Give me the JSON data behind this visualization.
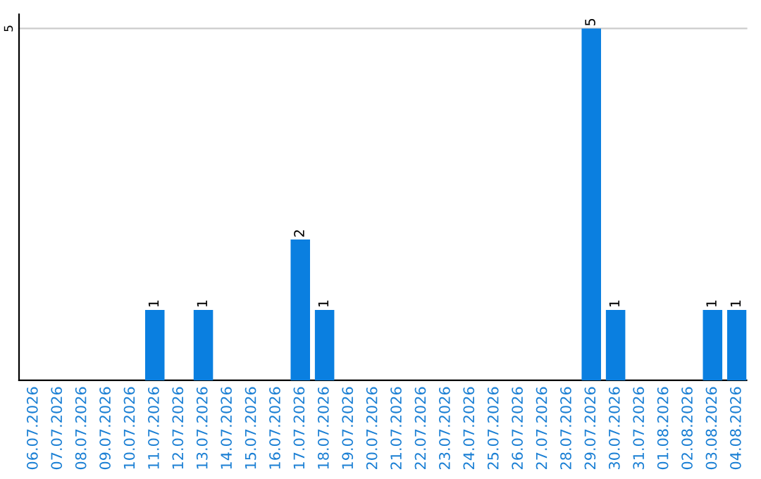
{
  "chart_data": {
    "type": "bar",
    "categories": [
      "06.07.2026",
      "07.07.2026",
      "08.07.2026",
      "09.07.2026",
      "10.07.2026",
      "11.07.2026",
      "12.07.2026",
      "13.07.2026",
      "14.07.2026",
      "15.07.2026",
      "16.07.2026",
      "17.07.2026",
      "18.07.2026",
      "19.07.2026",
      "20.07.2026",
      "21.07.2026",
      "22.07.2026",
      "23.07.2026",
      "24.07.2026",
      "25.07.2026",
      "26.07.2026",
      "27.07.2026",
      "28.07.2026",
      "29.07.2026",
      "30.07.2026",
      "31.07.2026",
      "01.08.2026",
      "02.08.2026",
      "03.08.2026",
      "04.08.2026"
    ],
    "values": [
      0,
      0,
      0,
      0,
      0,
      1,
      0,
      1,
      0,
      0,
      0,
      2,
      1,
      0,
      0,
      0,
      0,
      0,
      0,
      0,
      0,
      0,
      0,
      5,
      1,
      0,
      0,
      0,
      1,
      1
    ],
    "value_labels": [
      null,
      null,
      null,
      null,
      null,
      "1",
      null,
      "1",
      null,
      null,
      null,
      "2",
      "1",
      null,
      null,
      null,
      null,
      null,
      null,
      null,
      null,
      null,
      null,
      "5",
      "1",
      null,
      null,
      null,
      "1",
      "1"
    ],
    "color": "#0a7fe0",
    "ylim": [
      0,
      5.2
    ],
    "yticks": [
      5
    ],
    "grid": "y",
    "legend": false
  }
}
